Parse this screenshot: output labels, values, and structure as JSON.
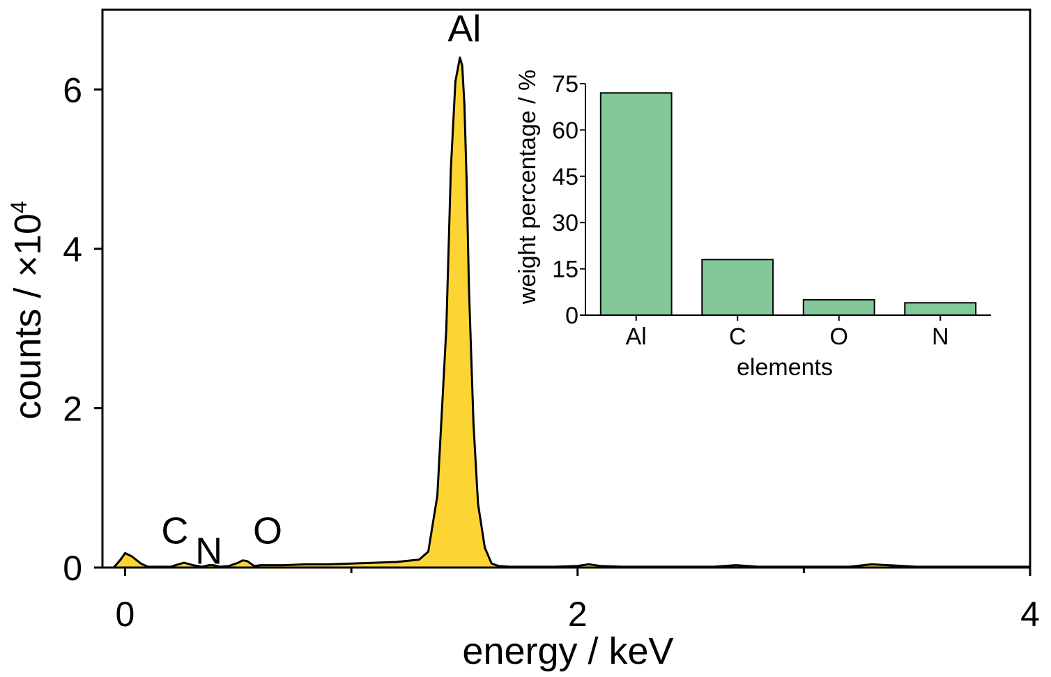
{
  "chart_data": [
    {
      "type": "area",
      "title": "",
      "xlabel": "energy / keV",
      "ylabel": "counts / ×10",
      "ylabel_exponent": "4",
      "xlim": [
        -0.1,
        4.0
      ],
      "ylim": [
        0,
        7.0
      ],
      "xticks": [
        0,
        2,
        4
      ],
      "yticks": [
        0,
        2,
        4,
        6
      ],
      "xticks_minor": [
        1,
        3
      ],
      "grid": false,
      "fill_color": "#fcd535",
      "line_color": "#000000",
      "x": [
        -0.05,
        -0.02,
        0.0,
        0.03,
        0.07,
        0.1,
        0.2,
        0.26,
        0.3,
        0.34,
        0.37,
        0.39,
        0.42,
        0.46,
        0.5,
        0.52,
        0.54,
        0.57,
        0.6,
        0.7,
        0.8,
        0.9,
        1.0,
        1.1,
        1.2,
        1.3,
        1.34,
        1.38,
        1.42,
        1.44,
        1.46,
        1.48,
        1.49,
        1.5,
        1.51,
        1.52,
        1.54,
        1.56,
        1.59,
        1.62,
        1.65,
        1.7,
        1.8,
        1.9,
        2.0,
        2.05,
        2.1,
        2.2,
        2.4,
        2.6,
        2.7,
        2.8,
        3.0,
        3.2,
        3.3,
        3.5,
        3.7,
        4.0
      ],
      "y": [
        0.0,
        0.1,
        0.18,
        0.14,
        0.05,
        0.01,
        0.01,
        0.06,
        0.03,
        0.01,
        0.03,
        0.03,
        0.01,
        0.02,
        0.06,
        0.09,
        0.08,
        0.02,
        0.03,
        0.03,
        0.04,
        0.04,
        0.05,
        0.06,
        0.07,
        0.1,
        0.2,
        0.9,
        3.0,
        5.0,
        6.1,
        6.4,
        6.3,
        5.8,
        4.8,
        3.5,
        1.8,
        0.8,
        0.25,
        0.05,
        0.02,
        0.01,
        0.01,
        0.01,
        0.02,
        0.04,
        0.02,
        0.01,
        0.01,
        0.01,
        0.03,
        0.01,
        0.01,
        0.01,
        0.04,
        0.01,
        0.01,
        0.01
      ],
      "annotations": [
        {
          "text": "Al",
          "x": 1.5,
          "y": 6.6
        },
        {
          "text": "C",
          "x": 0.22,
          "y": 0.3
        },
        {
          "text": "N",
          "x": 0.37,
          "y": 0.05
        },
        {
          "text": "O",
          "x": 0.63,
          "y": 0.3
        }
      ]
    },
    {
      "type": "bar",
      "title": "",
      "xlabel": "elements",
      "ylabel": "weight percentage / %",
      "categories": [
        "Al",
        "C",
        "O",
        "N"
      ],
      "values": [
        72,
        18,
        5,
        4
      ],
      "ylim": [
        0,
        75
      ],
      "yticks": [
        0,
        15,
        30,
        45,
        60,
        75
      ],
      "grid": false,
      "bar_color": "#82c899"
    }
  ]
}
